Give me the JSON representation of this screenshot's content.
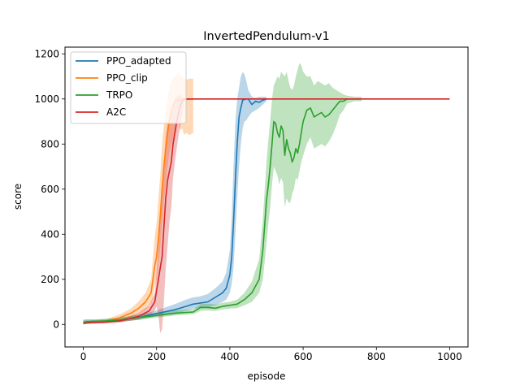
{
  "chart_data": {
    "type": "line",
    "title": "InvertedPendulum-v1",
    "xlabel": "episode",
    "ylabel": "score",
    "xlim": [
      -50,
      1050
    ],
    "ylim": [
      -100,
      1230
    ],
    "xticks": [
      0,
      200,
      400,
      600,
      800,
      1000
    ],
    "yticks": [
      0,
      200,
      400,
      600,
      800,
      1000,
      1200
    ],
    "legend_position": "top-left",
    "series": [
      {
        "name": "PPO_adapted",
        "color": "#1f77b4",
        "x": [
          0,
          10,
          30,
          60,
          100,
          150,
          200,
          250,
          280,
          300,
          320,
          340,
          360,
          380,
          390,
          400,
          405,
          410,
          415,
          420,
          425,
          430,
          435,
          440,
          445,
          450,
          460,
          470,
          480,
          490,
          500
        ],
        "y": [
          8,
          12,
          14,
          15,
          20,
          30,
          48,
          65,
          80,
          90,
          95,
          100,
          120,
          140,
          160,
          220,
          300,
          450,
          640,
          800,
          920,
          960,
          995,
          998,
          1000,
          1000,
          975,
          990,
          985,
          995,
          1000
        ],
        "lower": [
          0,
          5,
          7,
          8,
          12,
          20,
          35,
          45,
          60,
          70,
          72,
          75,
          85,
          100,
          110,
          140,
          180,
          250,
          400,
          560,
          700,
          800,
          870,
          900,
          905,
          920,
          940,
          950,
          960,
          975,
          990
        ],
        "upper": [
          20,
          22,
          22,
          24,
          30,
          42,
          62,
          90,
          110,
          120,
          125,
          135,
          160,
          190,
          230,
          330,
          480,
          700,
          900,
          1000,
          1050,
          1100,
          1120,
          1110,
          1080,
          1040,
          1010,
          1005,
          1010,
          1010,
          1010
        ]
      },
      {
        "name": "PPO_clip",
        "color": "#ff7f0e",
        "x": [
          0,
          10,
          30,
          60,
          100,
          130,
          150,
          170,
          185,
          190,
          195,
          200,
          205,
          210,
          215,
          220,
          225,
          230,
          235,
          240,
          245,
          250,
          255,
          260,
          265,
          270,
          275,
          280,
          290,
          300
        ],
        "y": [
          5,
          8,
          10,
          14,
          30,
          50,
          70,
          100,
          140,
          200,
          260,
          300,
          380,
          480,
          600,
          700,
          780,
          850,
          900,
          950,
          970,
          990,
          995,
          1000,
          995,
          1000,
          1000,
          998,
          1000,
          1000
        ],
        "lower": [
          0,
          2,
          5,
          8,
          18,
          32,
          45,
          65,
          95,
          120,
          170,
          200,
          260,
          340,
          450,
          540,
          620,
          700,
          760,
          800,
          820,
          850,
          880,
          900,
          860,
          870,
          840,
          850,
          840,
          850
        ],
        "upper": [
          14,
          15,
          16,
          22,
          45,
          70,
          100,
          140,
          200,
          290,
          390,
          450,
          560,
          660,
          800,
          880,
          950,
          1000,
          1050,
          1080,
          1090,
          1100,
          1110,
          1120,
          1100,
          1100,
          1090,
          1085,
          1090,
          1090
        ]
      },
      {
        "name": "TRPO",
        "color": "#2ca02c",
        "x": [
          0,
          10,
          30,
          60,
          100,
          150,
          200,
          250,
          300,
          320,
          340,
          360,
          380,
          400,
          420,
          440,
          460,
          470,
          480,
          490,
          500,
          505,
          510,
          515,
          520,
          525,
          530,
          535,
          540,
          545,
          550,
          555,
          560,
          565,
          570,
          575,
          580,
          585,
          590,
          595,
          600,
          610,
          620,
          630,
          640,
          650,
          660,
          670,
          680,
          690,
          700,
          710,
          720,
          740,
          760
        ],
        "y": [
          10,
          12,
          14,
          15,
          20,
          30,
          40,
          50,
          55,
          75,
          75,
          72,
          80,
          85,
          90,
          110,
          140,
          170,
          200,
          330,
          550,
          620,
          700,
          800,
          900,
          890,
          850,
          830,
          880,
          860,
          750,
          820,
          780,
          760,
          720,
          740,
          780,
          760,
          800,
          850,
          900,
          950,
          960,
          920,
          930,
          940,
          920,
          930,
          950,
          970,
          990,
          990,
          1000,
          1000,
          1000
        ],
        "lower": [
          2,
          5,
          7,
          8,
          12,
          20,
          30,
          40,
          45,
          60,
          62,
          60,
          66,
          70,
          72,
          85,
          100,
          120,
          140,
          200,
          360,
          450,
          520,
          620,
          700,
          680,
          660,
          620,
          650,
          630,
          520,
          560,
          540,
          540,
          580,
          600,
          650,
          640,
          680,
          720,
          750,
          800,
          830,
          780,
          790,
          800,
          790,
          810,
          840,
          880,
          930,
          950,
          980,
          990,
          990
        ],
        "upper": [
          22,
          22,
          22,
          24,
          30,
          42,
          52,
          62,
          68,
          90,
          92,
          88,
          96,
          100,
          110,
          140,
          190,
          240,
          290,
          470,
          720,
          820,
          900,
          1000,
          1060,
          1080,
          1100,
          1090,
          1120,
          1110,
          1100,
          1120,
          1080,
          1050,
          1040,
          1060,
          1100,
          1130,
          1160,
          1150,
          1120,
          1100,
          1100,
          1060,
          1080,
          1070,
          1060,
          1070,
          1050,
          1040,
          1030,
          1020,
          1015,
          1010,
          1010
        ]
      },
      {
        "name": "A2C",
        "color": "#d62728",
        "x": [
          0,
          10,
          30,
          60,
          100,
          150,
          180,
          195,
          200,
          205,
          210,
          215,
          220,
          225,
          230,
          235,
          240,
          245,
          250,
          255,
          260,
          265,
          270,
          275,
          280,
          300,
          400,
          500,
          600,
          700,
          800,
          900,
          1000
        ],
        "y": [
          5,
          7,
          8,
          10,
          15,
          35,
          60,
          100,
          150,
          200,
          250,
          300,
          430,
          560,
          640,
          680,
          720,
          800,
          850,
          900,
          940,
          970,
          990,
          1000,
          1000,
          1000,
          1000,
          1000,
          1000,
          1000,
          1000,
          1000,
          1000
        ],
        "lower": [
          0,
          2,
          3,
          4,
          8,
          22,
          40,
          60,
          80,
          40,
          -40,
          -20,
          100,
          250,
          350,
          450,
          520,
          650,
          720,
          780,
          840,
          880,
          930,
          990,
          995,
          997,
          997,
          997,
          997,
          997,
          997,
          997,
          997
        ],
        "upper": [
          12,
          14,
          14,
          16,
          22,
          50,
          85,
          140,
          230,
          350,
          470,
          580,
          720,
          830,
          900,
          920,
          940,
          980,
          1000,
          1010,
          1020,
          1015,
          1010,
          1005,
          1003,
          1003,
          1003,
          1003,
          1003,
          1003,
          1003,
          1003,
          1003
        ]
      }
    ]
  }
}
